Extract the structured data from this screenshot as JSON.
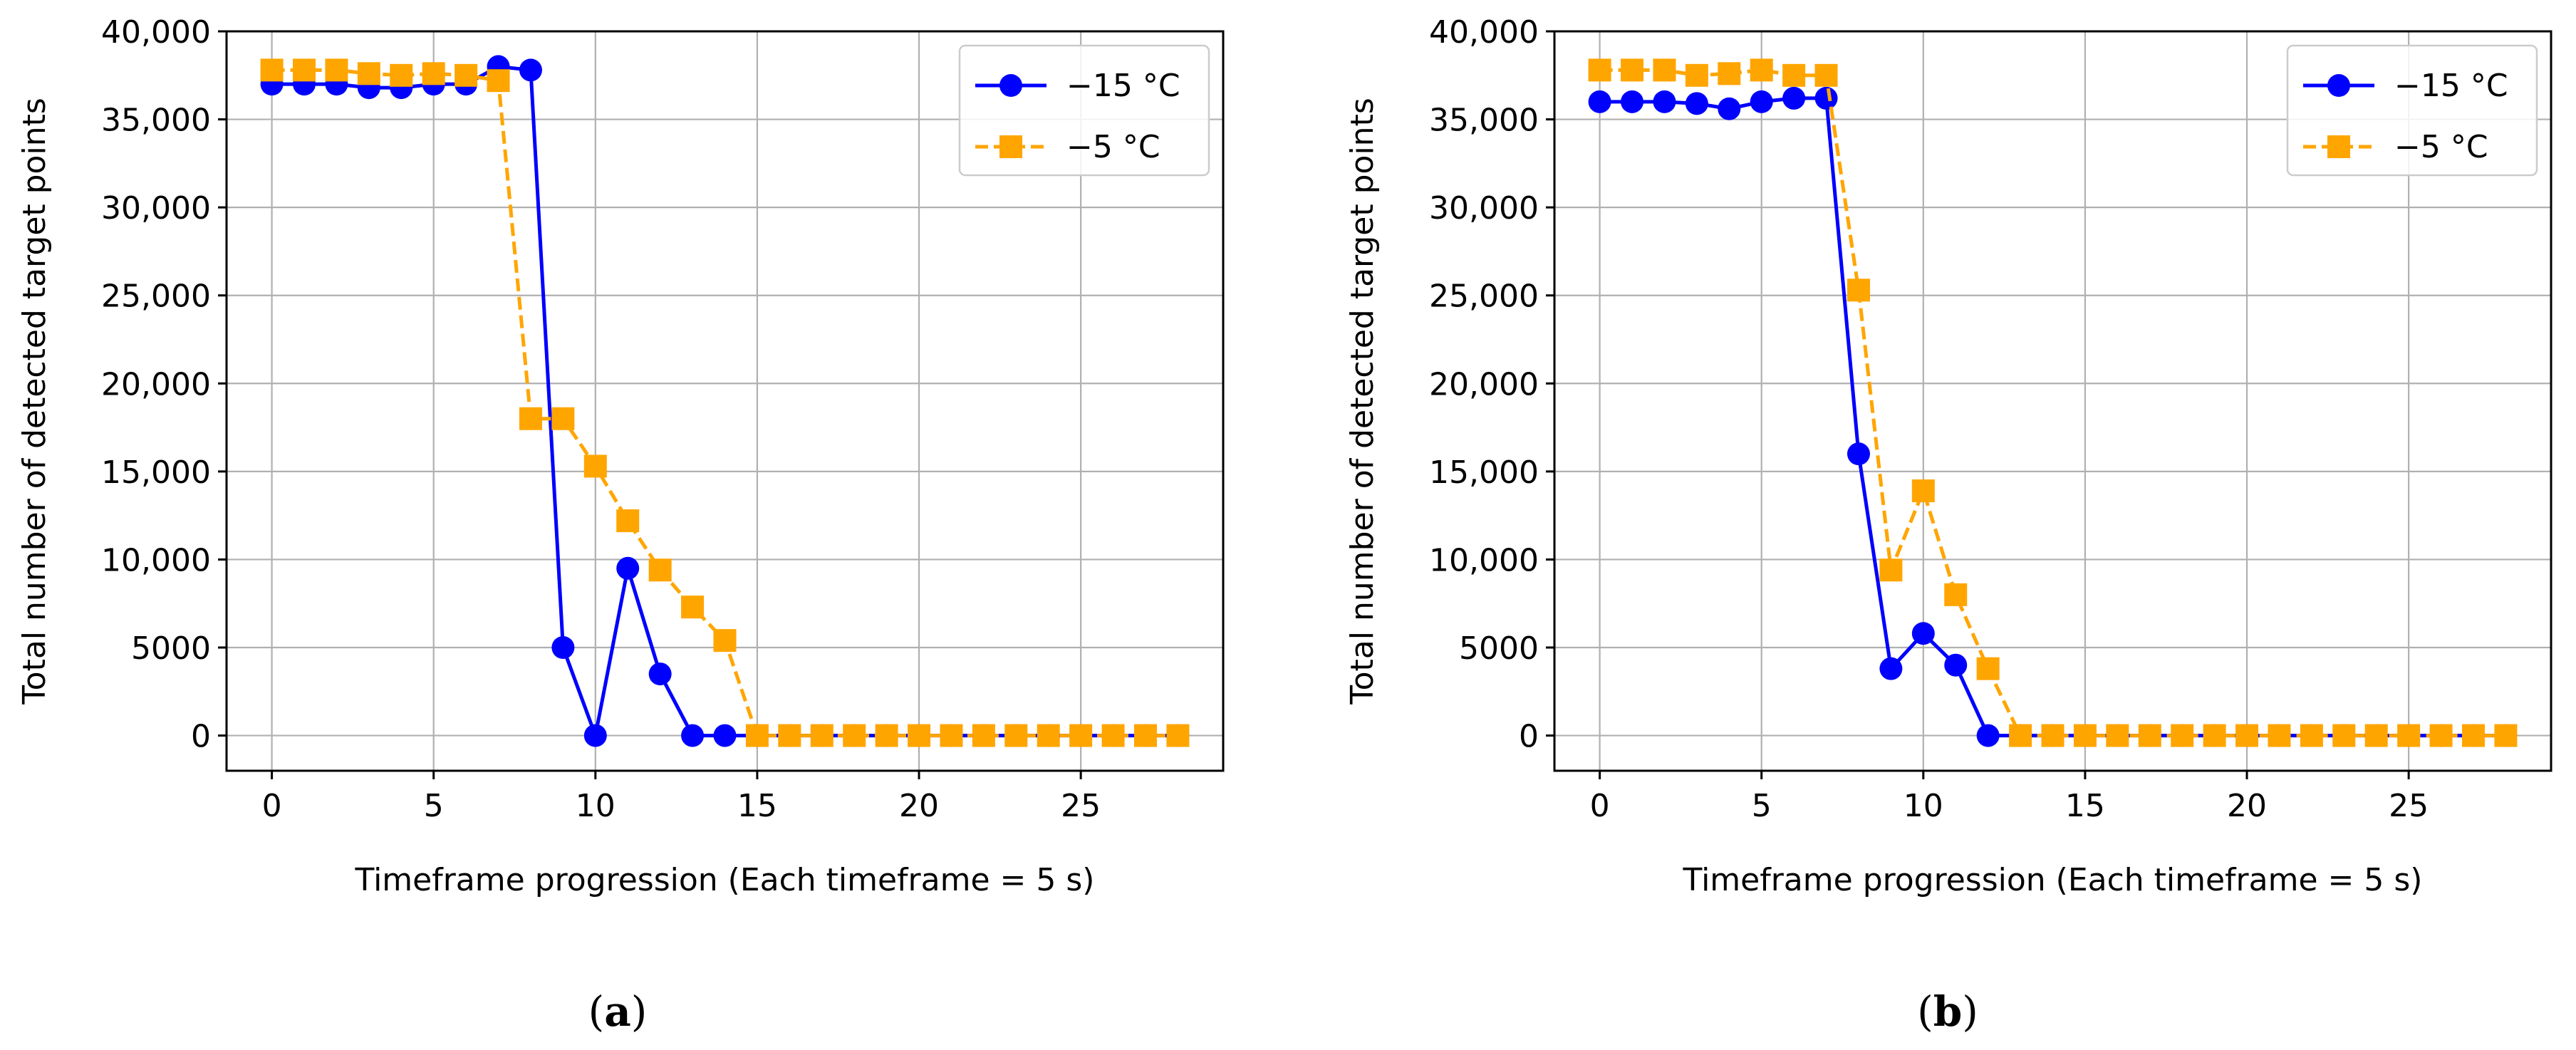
{
  "figure": {
    "captions": [
      {
        "open": "(",
        "letter": "a",
        "close": ")"
      },
      {
        "open": "(",
        "letter": "b",
        "close": ")"
      }
    ]
  },
  "chart_data": [
    {
      "type": "line",
      "title": "",
      "xlabel": "Timeframe progression (Each timeframe = 5 s)",
      "ylabel": "Total number of detected target points",
      "xlim": [
        -1.4,
        29.4
      ],
      "ylim": [
        -2000,
        40000
      ],
      "xticks": [
        0,
        5,
        10,
        15,
        20,
        25
      ],
      "yticks": [
        0,
        5000,
        10000,
        15000,
        20000,
        25000,
        30000,
        35000,
        40000
      ],
      "ytick_labels": [
        "0",
        "5000",
        "10,000",
        "15,000",
        "20,000",
        "25,000",
        "30,000",
        "35,000",
        "40,000"
      ],
      "grid": true,
      "legend": "top-right",
      "x": [
        0,
        1,
        2,
        3,
        4,
        5,
        6,
        7,
        8,
        9,
        10,
        11,
        12,
        13,
        14,
        15,
        16,
        17,
        18,
        19,
        20,
        21,
        22,
        23,
        24,
        25,
        26,
        27,
        28
      ],
      "series": [
        {
          "name": "−15 °C",
          "color": "#0000ff",
          "marker": "circle",
          "linestyle": "solid",
          "values": [
            37000,
            37000,
            37000,
            36800,
            36800,
            37000,
            37000,
            38000,
            37800,
            5000,
            0,
            9500,
            3500,
            0,
            0,
            0,
            0,
            0,
            0,
            0,
            0,
            0,
            0,
            0,
            0,
            0,
            0,
            0,
            0
          ]
        },
        {
          "name": "−5 °C",
          "color": "#ffa500",
          "marker": "square",
          "linestyle": "dashed",
          "values": [
            37800,
            37800,
            37800,
            37600,
            37500,
            37600,
            37500,
            37200,
            18000,
            18000,
            15300,
            12200,
            9400,
            7300,
            5400,
            0,
            0,
            0,
            0,
            0,
            0,
            0,
            0,
            0,
            0,
            0,
            0,
            0,
            0
          ]
        }
      ]
    },
    {
      "type": "line",
      "title": "",
      "xlabel": "Timeframe progression (Each timeframe = 5 s)",
      "ylabel": "Total number of detected target points",
      "xlim": [
        -1.4,
        29.4
      ],
      "ylim": [
        -2000,
        40000
      ],
      "xticks": [
        0,
        5,
        10,
        15,
        20,
        25
      ],
      "yticks": [
        0,
        5000,
        10000,
        15000,
        20000,
        25000,
        30000,
        35000,
        40000
      ],
      "ytick_labels": [
        "0",
        "5000",
        "10,000",
        "15,000",
        "20,000",
        "25,000",
        "30,000",
        "35,000",
        "40,000"
      ],
      "grid": true,
      "legend": "top-right",
      "x": [
        0,
        1,
        2,
        3,
        4,
        5,
        6,
        7,
        8,
        9,
        10,
        11,
        12,
        13,
        14,
        15,
        16,
        17,
        18,
        19,
        20,
        21,
        22,
        23,
        24,
        25,
        26,
        27,
        28
      ],
      "series": [
        {
          "name": "−15 °C",
          "color": "#0000ff",
          "marker": "circle",
          "linestyle": "solid",
          "values": [
            36000,
            36000,
            36000,
            35900,
            35600,
            36000,
            36200,
            36200,
            16000,
            3800,
            5800,
            4000,
            0,
            0,
            0,
            0,
            0,
            0,
            0,
            0,
            0,
            0,
            0,
            0,
            0,
            0,
            0,
            0,
            0
          ]
        },
        {
          "name": "−5 °C",
          "color": "#ffa500",
          "marker": "square",
          "linestyle": "dashed",
          "values": [
            37800,
            37800,
            37800,
            37500,
            37600,
            37800,
            37500,
            37500,
            25300,
            9400,
            13900,
            8000,
            3800,
            0,
            0,
            0,
            0,
            0,
            0,
            0,
            0,
            0,
            0,
            0,
            0,
            0,
            0,
            0,
            0
          ]
        }
      ]
    }
  ]
}
